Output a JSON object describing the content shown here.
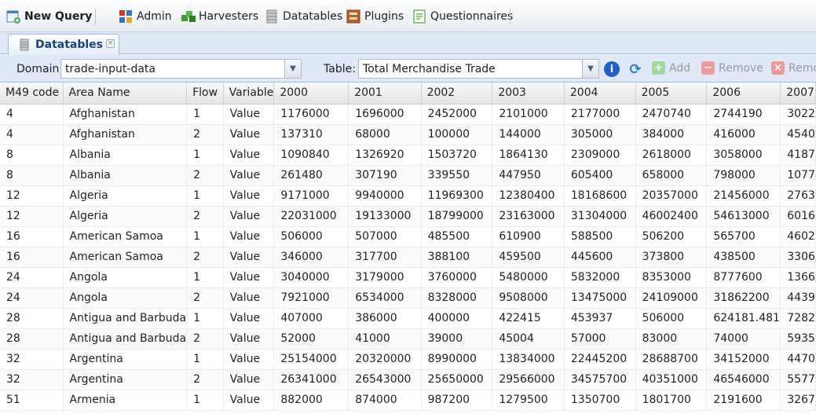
{
  "toolbar": {
    "new_query": "New Query",
    "admin": "Admin",
    "harvesters": "Harvesters",
    "datatables": "Datatables",
    "plugins": "Plugins",
    "questionnaires": "Questionnaires"
  },
  "tab": {
    "label": "Datatables"
  },
  "filters": {
    "domain_label": "Domain:",
    "domain_value": "trade-input-data",
    "table_label": "Table:",
    "table_value": "Total Merchandise Trade",
    "add": "Add",
    "remove": "Remove",
    "remove2": "Remo"
  },
  "grid": {
    "columns": [
      "M49 code",
      "Area Name",
      "Flow",
      "Variable",
      "2000",
      "2001",
      "2002",
      "2003",
      "2004",
      "2005",
      "2006",
      "2007"
    ],
    "rows": [
      [
        "4",
        "Afghanistan",
        "1",
        "Value",
        "1176000",
        "1696000",
        "2452000",
        "2101000",
        "2177000",
        "2470740",
        "2744190",
        "3022"
      ],
      [
        "4",
        "Afghanistan",
        "2",
        "Value",
        "137310",
        "68000",
        "100000",
        "144000",
        "305000",
        "384000",
        "416000",
        "4540"
      ],
      [
        "8",
        "Albania",
        "1",
        "Value",
        "1090840",
        "1326920",
        "1503720",
        "1864130",
        "2309000",
        "2618000",
        "3058000",
        "4187"
      ],
      [
        "8",
        "Albania",
        "2",
        "Value",
        "261480",
        "307190",
        "339550",
        "447950",
        "605400",
        "658000",
        "798000",
        "1077"
      ],
      [
        "12",
        "Algeria",
        "1",
        "Value",
        "9171000",
        "9940000",
        "11969300",
        "12380400",
        "18168600",
        "20357000",
        "21456000",
        "2763"
      ],
      [
        "12",
        "Algeria",
        "2",
        "Value",
        "22031000",
        "19133000",
        "18799000",
        "23163000",
        "31304000",
        "46002400",
        "54613000",
        "6016"
      ],
      [
        "16",
        "American Samoa",
        "1",
        "Value",
        "506000",
        "507000",
        "485500",
        "610900",
        "588500",
        "506200",
        "565700",
        "4602"
      ],
      [
        "16",
        "American Samoa",
        "2",
        "Value",
        "346000",
        "317700",
        "388100",
        "459500",
        "445600",
        "373800",
        "438500",
        "3306"
      ],
      [
        "24",
        "Angola",
        "1",
        "Value",
        "3040000",
        "3179000",
        "3760000",
        "5480000",
        "5832000",
        "8353000",
        "8777600",
        "1366"
      ],
      [
        "24",
        "Angola",
        "2",
        "Value",
        "7921000",
        "6534000",
        "8328000",
        "9508000",
        "13475000",
        "24109000",
        "31862200",
        "4439"
      ],
      [
        "28",
        "Antigua and Barbuda",
        "1",
        "Value",
        "407000",
        "386000",
        "400000",
        "422415",
        "453937",
        "506000",
        "624181.481",
        "7282"
      ],
      [
        "28",
        "Antigua and Barbuda",
        "2",
        "Value",
        "52000",
        "41000",
        "39000",
        "45004",
        "57000",
        "83000",
        "74000",
        "5935"
      ],
      [
        "32",
        "Argentina",
        "1",
        "Value",
        "25154000",
        "20320000",
        "8990000",
        "13834000",
        "22445200",
        "28688700",
        "34152000",
        "4470"
      ],
      [
        "32",
        "Argentina",
        "2",
        "Value",
        "26341000",
        "26543000",
        "25650000",
        "29566000",
        "34575700",
        "40351000",
        "46546000",
        "5577"
      ],
      [
        "51",
        "Armenia",
        "1",
        "Value",
        "882000",
        "874000",
        "987200",
        "1279500",
        "1350700",
        "1801700",
        "2191600",
        "3267"
      ]
    ]
  }
}
